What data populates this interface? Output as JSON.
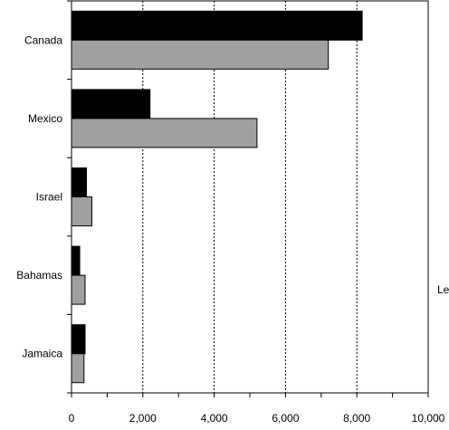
{
  "chart_data": {
    "type": "bar",
    "orientation": "horizontal",
    "categories": [
      "Canada",
      "Mexico",
      "Israel",
      "Bahamas",
      "Jamaica"
    ],
    "series": [
      {
        "values": [
          8150,
          2200,
          420,
          230,
          380
        ],
        "color": "#000000"
      },
      {
        "values": [
          7200,
          5200,
          570,
          380,
          350
        ],
        "color": "#a0a0a0"
      }
    ],
    "xlim": [
      0,
      10000
    ],
    "x_ticks": [
      0,
      2000,
      4000,
      6000,
      8000,
      10000
    ],
    "x_tick_labels": [
      "0",
      "2,000",
      "4,000",
      "6,000",
      "8,000",
      "10,000"
    ],
    "grid": "vertical dashed",
    "legend_fragment": "Le"
  }
}
